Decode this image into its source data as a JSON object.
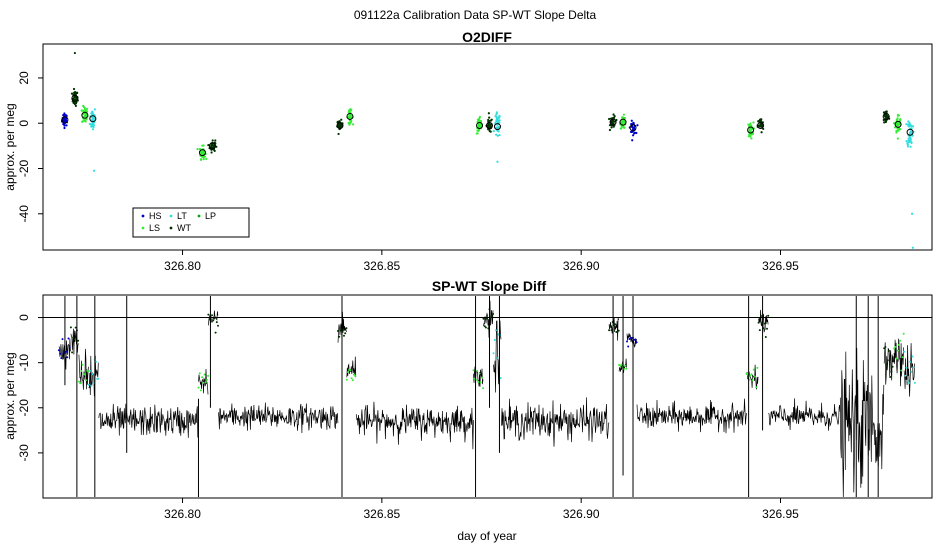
{
  "page_title": "091122a   Calibration Data SP-WT Slope Delta",
  "colors": {
    "HS": "#0000cc",
    "LS": "#33ee33",
    "LT": "#33dddd",
    "WT": "#003300",
    "LP": "#00aa00",
    "trace": "#000000"
  },
  "chart_data": [
    {
      "type": "scatter",
      "title": "O2DIFF",
      "xlabel": "",
      "ylabel": "approx. per meg",
      "xlim": [
        326.765,
        326.988
      ],
      "ylim": [
        -56,
        35
      ],
      "x_ticks": [
        326.8,
        326.85,
        326.9,
        326.95
      ],
      "x_tick_labels": [
        "326.80",
        "326.85",
        "326.90",
        "326.95"
      ],
      "y_ticks": [
        20,
        0,
        -20,
        -40
      ],
      "y_tick_labels": [
        "20",
        "0",
        "-20",
        "-40"
      ],
      "legend": {
        "position": "bottom-left",
        "entries": [
          {
            "label": "HS",
            "key": "HS"
          },
          {
            "label": "LS",
            "key": "LS"
          },
          {
            "label": "LT",
            "key": "LT"
          },
          {
            "label": "WT",
            "key": "WT"
          },
          {
            "label": "LP",
            "key": "LP"
          }
        ]
      },
      "clusters": [
        {
          "series": "HS",
          "x": 326.7705,
          "y": 1.5,
          "spread": 2.5,
          "n": 40
        },
        {
          "series": "WT",
          "x": 326.773,
          "y": 11,
          "spread": 3,
          "n": 45
        },
        {
          "series": "LS",
          "x": 326.7755,
          "y": 3.5,
          "spread": 3.5,
          "n": 45
        },
        {
          "series": "LT",
          "x": 326.7775,
          "y": 2,
          "spread": 5,
          "n": 45
        },
        {
          "series": "LS",
          "x": 326.805,
          "y": -13,
          "spread": 2.5,
          "n": 40
        },
        {
          "series": "WT",
          "x": 326.8075,
          "y": -10,
          "spread": 2.5,
          "n": 35
        },
        {
          "series": "WT",
          "x": 326.8395,
          "y": -1,
          "spread": 2,
          "n": 30
        },
        {
          "series": "LS",
          "x": 326.842,
          "y": 3,
          "spread": 2.5,
          "n": 35
        },
        {
          "series": "LS",
          "x": 326.8745,
          "y": -1,
          "spread": 3.5,
          "n": 40
        },
        {
          "series": "WT",
          "x": 326.877,
          "y": -1,
          "spread": 3,
          "n": 35
        },
        {
          "series": "LT",
          "x": 326.879,
          "y": -1,
          "spread": 5,
          "n": 45
        },
        {
          "series": "WT",
          "x": 326.908,
          "y": 0.5,
          "spread": 2.5,
          "n": 35
        },
        {
          "series": "LS",
          "x": 326.9105,
          "y": 0.5,
          "spread": 2.5,
          "n": 35
        },
        {
          "series": "HS",
          "x": 326.913,
          "y": -2,
          "spread": 2.5,
          "n": 35
        },
        {
          "series": "LS",
          "x": 326.9425,
          "y": -3,
          "spread": 3,
          "n": 40
        },
        {
          "series": "WT",
          "x": 326.945,
          "y": -1,
          "spread": 3,
          "n": 30
        },
        {
          "series": "WT",
          "x": 326.9765,
          "y": 3,
          "spread": 3,
          "n": 40
        },
        {
          "series": "LS",
          "x": 326.9795,
          "y": -0.5,
          "spread": 4,
          "n": 45
        },
        {
          "series": "LT",
          "x": 326.9825,
          "y": -4,
          "spread": 6,
          "n": 45
        }
      ],
      "cluster_means": [
        {
          "x": 326.7705,
          "y": 1.5
        },
        {
          "x": 326.773,
          "y": 11
        },
        {
          "x": 326.7755,
          "y": 3.5
        },
        {
          "x": 326.7775,
          "y": 2
        },
        {
          "x": 326.805,
          "y": -13
        },
        {
          "x": 326.8075,
          "y": -10
        },
        {
          "x": 326.8395,
          "y": -1
        },
        {
          "x": 326.842,
          "y": 3
        },
        {
          "x": 326.8745,
          "y": -1
        },
        {
          "x": 326.877,
          "y": -1
        },
        {
          "x": 326.879,
          "y": -1.5
        },
        {
          "x": 326.908,
          "y": 0.5
        },
        {
          "x": 326.9105,
          "y": 0.5
        },
        {
          "x": 326.913,
          "y": -2
        },
        {
          "x": 326.9425,
          "y": -3
        },
        {
          "x": 326.945,
          "y": -1
        },
        {
          "x": 326.9765,
          "y": 3
        },
        {
          "x": 326.9795,
          "y": -0.5
        },
        {
          "x": 326.9825,
          "y": -4
        }
      ],
      "outliers": [
        {
          "series": "WT",
          "x": 326.773,
          "y": 31
        },
        {
          "series": "LT",
          "x": 326.7778,
          "y": -21
        },
        {
          "series": "LT",
          "x": 326.983,
          "y": -40
        },
        {
          "series": "LT",
          "x": 326.9832,
          "y": -55
        },
        {
          "series": "LT",
          "x": 326.879,
          "y": -17
        }
      ]
    },
    {
      "type": "line",
      "title": "SP-WT Slope Diff",
      "xlabel": "day of year",
      "ylabel": "approx. per meg",
      "xlim": [
        326.765,
        326.988
      ],
      "ylim": [
        -40,
        5
      ],
      "x_ticks": [
        326.8,
        326.85,
        326.9,
        326.95
      ],
      "x_tick_labels": [
        "326.80",
        "326.85",
        "326.90",
        "326.95"
      ],
      "y_ticks": [
        0,
        -10,
        -20,
        -30
      ],
      "y_tick_labels": [
        "0",
        "-10",
        "-20",
        "-30"
      ],
      "reference_line_y": 0,
      "baseline_segments": [
        {
          "x0": 326.779,
          "x1": 326.804,
          "y": -23,
          "noise": 3
        },
        {
          "x0": 326.809,
          "x1": 326.839,
          "y": -22,
          "noise": 2.5
        },
        {
          "x0": 326.8435,
          "x1": 326.873,
          "y": -23,
          "noise": 3
        },
        {
          "x0": 326.88,
          "x1": 326.907,
          "y": -23,
          "noise": 3.5
        },
        {
          "x0": 326.914,
          "x1": 326.9415,
          "y": -22,
          "noise": 2.5
        },
        {
          "x0": 326.947,
          "x1": 326.965,
          "y": -22,
          "noise": 2.5
        },
        {
          "x0": 326.965,
          "x1": 326.976,
          "y": -24,
          "noise": 12
        }
      ],
      "calibration_segments": [
        {
          "series": "HS",
          "x0": 326.769,
          "x1": 326.772,
          "y": -7,
          "noise": 2.5
        },
        {
          "series": "WT",
          "x0": 326.772,
          "x1": 326.774,
          "y": -5,
          "noise": 3
        },
        {
          "series": "LS",
          "x0": 326.774,
          "x1": 326.7765,
          "y": -12,
          "noise": 4
        },
        {
          "series": "LT",
          "x0": 326.7765,
          "x1": 326.779,
          "y": -13,
          "noise": 5
        },
        {
          "series": "LS",
          "x0": 326.804,
          "x1": 326.8065,
          "y": -14,
          "noise": 2
        },
        {
          "series": "WT",
          "x0": 326.8065,
          "x1": 326.809,
          "y": -1,
          "noise": 2
        },
        {
          "series": "WT",
          "x0": 326.839,
          "x1": 326.8412,
          "y": -3,
          "noise": 2.5
        },
        {
          "series": "LS",
          "x0": 326.8412,
          "x1": 326.8435,
          "y": -12,
          "noise": 2
        },
        {
          "series": "LS",
          "x0": 326.873,
          "x1": 326.8755,
          "y": -14,
          "noise": 2.5
        },
        {
          "series": "WT",
          "x0": 326.8755,
          "x1": 326.878,
          "y": -1,
          "noise": 3
        },
        {
          "series": "LT",
          "x0": 326.878,
          "x1": 326.88,
          "y": -8,
          "noise": 6
        },
        {
          "series": "WT",
          "x0": 326.907,
          "x1": 326.9095,
          "y": -2,
          "noise": 2
        },
        {
          "series": "LS",
          "x0": 326.9095,
          "x1": 326.9115,
          "y": -11,
          "noise": 1.5
        },
        {
          "series": "HS",
          "x0": 326.9115,
          "x1": 326.914,
          "y": -5,
          "noise": 1.5
        },
        {
          "series": "LS",
          "x0": 326.9415,
          "x1": 326.9445,
          "y": -13,
          "noise": 2
        },
        {
          "series": "WT",
          "x0": 326.9445,
          "x1": 326.947,
          "y": -1,
          "noise": 2
        },
        {
          "series": "WT",
          "x0": 326.976,
          "x1": 326.9785,
          "y": -10,
          "noise": 4
        },
        {
          "series": "LS",
          "x0": 326.9785,
          "x1": 326.981,
          "y": -8,
          "noise": 5
        },
        {
          "series": "LT",
          "x0": 326.981,
          "x1": 326.9838,
          "y": -12,
          "noise": 5
        }
      ],
      "spikes": [
        {
          "x": 326.7705,
          "y_top": 5,
          "y_bottom": -15
        },
        {
          "x": 326.7735,
          "y_top": 5,
          "y_bottom": -40
        },
        {
          "x": 326.778,
          "y_top": 5,
          "y_bottom": -40
        },
        {
          "x": 326.786,
          "y_top": 5,
          "y_bottom": -30
        },
        {
          "x": 326.804,
          "y_top": -18,
          "y_bottom": -40
        },
        {
          "x": 326.807,
          "y_top": 5,
          "y_bottom": -20
        },
        {
          "x": 326.84,
          "y_top": 5,
          "y_bottom": -40
        },
        {
          "x": 326.8735,
          "y_top": 5,
          "y_bottom": -40
        },
        {
          "x": 326.877,
          "y_top": 5,
          "y_bottom": -20
        },
        {
          "x": 326.8795,
          "y_top": 5,
          "y_bottom": -30
        },
        {
          "x": 326.908,
          "y_top": 5,
          "y_bottom": -40
        },
        {
          "x": 326.9105,
          "y_top": 5,
          "y_bottom": -35
        },
        {
          "x": 326.913,
          "y_top": 5,
          "y_bottom": -40
        },
        {
          "x": 326.942,
          "y_top": 5,
          "y_bottom": -40
        },
        {
          "x": 326.9455,
          "y_top": 5,
          "y_bottom": -25
        },
        {
          "x": 326.969,
          "y_top": 5,
          "y_bottom": -40
        },
        {
          "x": 326.972,
          "y_top": 5,
          "y_bottom": -40
        },
        {
          "x": 326.9745,
          "y_top": 5,
          "y_bottom": -40
        }
      ]
    }
  ]
}
